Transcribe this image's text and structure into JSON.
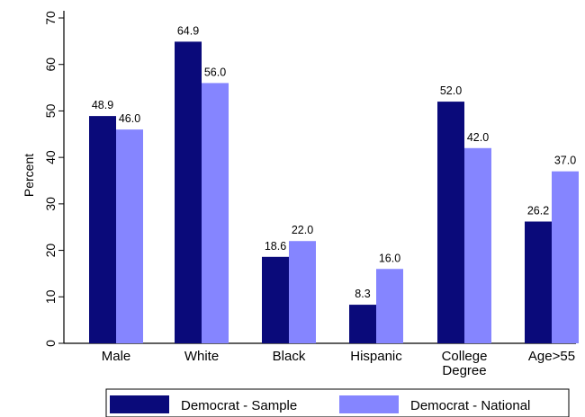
{
  "chart_data": {
    "type": "bar",
    "title": "",
    "xlabel": "",
    "ylabel": "Percent",
    "ylim": [
      0,
      70
    ],
    "yticks": [
      0,
      10,
      20,
      30,
      40,
      50,
      60,
      70
    ],
    "categories": [
      "Male",
      "White",
      "Black",
      "Hispanic",
      "College Degree",
      "Age>55"
    ],
    "category_lines": [
      [
        "Male"
      ],
      [
        "White"
      ],
      [
        "Black"
      ],
      [
        "Hispanic"
      ],
      [
        "College",
        "Degree"
      ],
      [
        "Age>55"
      ]
    ],
    "series": [
      {
        "name": "Democrat - Sample",
        "color": "#0a0a7a",
        "values": [
          48.9,
          64.9,
          18.6,
          8.3,
          52.0,
          26.2
        ],
        "labels": [
          "48.9",
          "64.9",
          "18.6",
          "8.3",
          "52.0",
          "26.2"
        ]
      },
      {
        "name": "Democrat - National",
        "color": "#8585ff",
        "values": [
          46.0,
          56.0,
          22.0,
          16.0,
          42.0,
          37.0
        ],
        "labels": [
          "46.0",
          "56.0",
          "22.0",
          "16.0",
          "42.0",
          "37.0"
        ]
      }
    ],
    "grid": false,
    "legend": "bottom"
  }
}
